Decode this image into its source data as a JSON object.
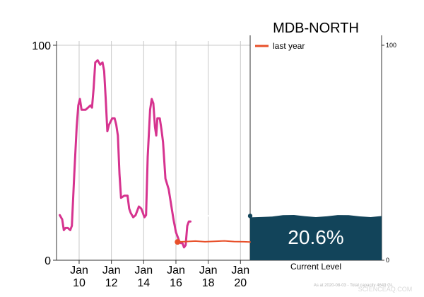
{
  "chart_data": {
    "type": "line",
    "title": "MDB-NORTH",
    "y_ticks": [
      "100",
      "0"
    ],
    "right_y_ticks": [
      "100",
      "0"
    ],
    "ylim": [
      0,
      100
    ],
    "x_ticks": [
      {
        "x": 2010,
        "line1": "Jan",
        "line2": "10"
      },
      {
        "x": 2012,
        "line1": "Jan",
        "line2": "12"
      },
      {
        "x": 2014,
        "line1": "Jan",
        "line2": "14"
      },
      {
        "x": 2016,
        "line1": "Jan",
        "line2": "16"
      },
      {
        "x": 2018,
        "line1": "Jan",
        "line2": "18"
      },
      {
        "x": 2020,
        "line1": "Jan",
        "line2": "20"
      }
    ],
    "xlim": [
      2008.6,
      2020.6
    ],
    "series": [
      {
        "color": "#d6338f",
        "points": [
          [
            2008.8,
            21
          ],
          [
            2008.95,
            19
          ],
          [
            2009.05,
            14
          ],
          [
            2009.15,
            15
          ],
          [
            2009.3,
            15
          ],
          [
            2009.45,
            14
          ],
          [
            2009.55,
            16
          ],
          [
            2009.7,
            40
          ],
          [
            2009.85,
            62
          ],
          [
            2009.95,
            72
          ],
          [
            2010.05,
            75
          ],
          [
            2010.15,
            70
          ],
          [
            2010.4,
            70
          ],
          [
            2010.55,
            71
          ],
          [
            2010.7,
            72
          ],
          [
            2010.8,
            71
          ],
          [
            2010.9,
            80
          ],
          [
            2011.0,
            92
          ],
          [
            2011.15,
            93
          ],
          [
            2011.3,
            91
          ],
          [
            2011.45,
            92
          ],
          [
            2011.55,
            88
          ],
          [
            2011.65,
            75
          ],
          [
            2011.75,
            60
          ],
          [
            2011.85,
            63
          ],
          [
            2012.05,
            66
          ],
          [
            2012.2,
            66
          ],
          [
            2012.3,
            63
          ],
          [
            2012.4,
            58
          ],
          [
            2012.5,
            40
          ],
          [
            2012.6,
            29
          ],
          [
            2012.8,
            30
          ],
          [
            2013.0,
            30
          ],
          [
            2013.1,
            24
          ],
          [
            2013.2,
            22
          ],
          [
            2013.35,
            20
          ],
          [
            2013.5,
            21
          ],
          [
            2013.7,
            25
          ],
          [
            2013.85,
            24
          ],
          [
            2013.95,
            22
          ],
          [
            2014.05,
            20
          ],
          [
            2014.15,
            21
          ],
          [
            2014.25,
            48
          ],
          [
            2014.4,
            70
          ],
          [
            2014.5,
            75
          ],
          [
            2014.6,
            73
          ],
          [
            2014.7,
            62
          ],
          [
            2014.78,
            58
          ],
          [
            2014.85,
            66
          ],
          [
            2015.0,
            66
          ],
          [
            2015.1,
            61
          ],
          [
            2015.2,
            55
          ],
          [
            2015.35,
            38
          ],
          [
            2015.55,
            33
          ],
          [
            2015.7,
            26
          ],
          [
            2015.85,
            19
          ],
          [
            2016.0,
            13
          ],
          [
            2016.1,
            11
          ],
          [
            2016.2,
            9
          ],
          [
            2016.3,
            8
          ],
          [
            2016.4,
            8
          ],
          [
            2016.5,
            6
          ],
          [
            2016.6,
            7
          ],
          [
            2016.7,
            16
          ],
          [
            2016.8,
            18
          ],
          [
            2016.9,
            18
          ]
        ]
      },
      {
        "color": "#ffffff",
        "points": [
          [
            2016.9,
            20.6
          ],
          [
            2017.25,
            20.6
          ],
          [
            2017.6,
            20.5
          ],
          [
            2018.0,
            20.7
          ],
          [
            2018.4,
            20.6
          ]
        ]
      },
      {
        "name": "last year",
        "color": "#e8502a",
        "points": [
          [
            2016.1,
            8.5
          ],
          [
            2016.6,
            8.7
          ],
          [
            2017.2,
            8.9
          ],
          [
            2017.8,
            8.6
          ],
          [
            2018.4,
            8.8
          ],
          [
            2019.0,
            9.0
          ],
          [
            2019.6,
            8.7
          ],
          [
            2020.2,
            8.6
          ],
          [
            2020.6,
            8.5
          ]
        ]
      }
    ],
    "last_year_point": [
      2016.1,
      8.5
    ],
    "current_level": {
      "value": 20.6,
      "label": "20.6%",
      "caption": "Current Level",
      "color": "#12445a"
    },
    "legend": {
      "label": "last year",
      "color": "#e8502a",
      "position": "top-left"
    },
    "gridlines": "vertical"
  },
  "footer": "As at 2020-08-03 - Total capacity 4649 GL",
  "watermark": "SCIENCEAQ.COM"
}
